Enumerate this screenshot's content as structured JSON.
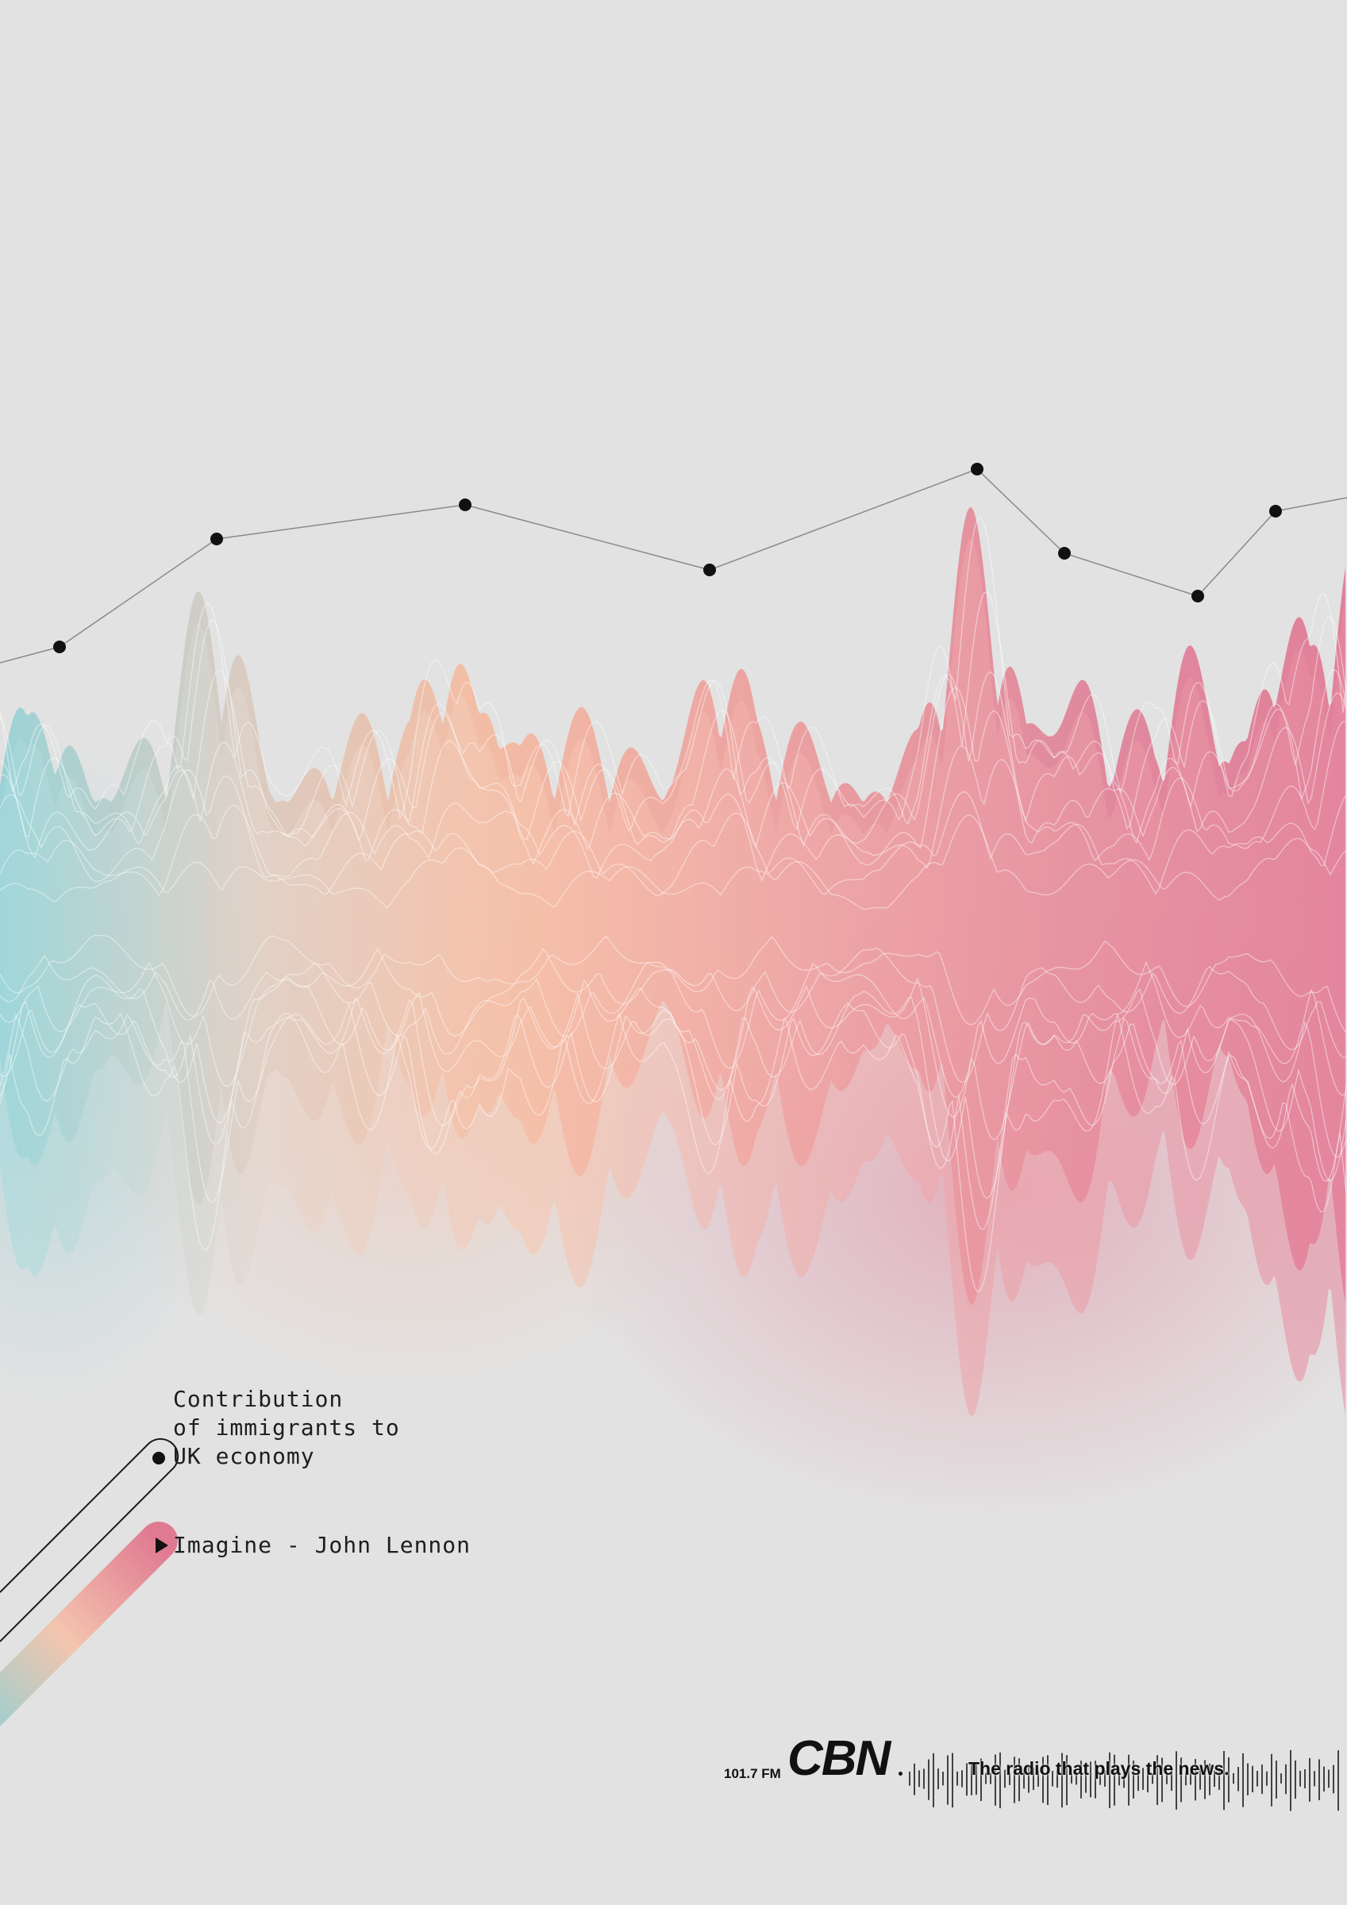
{
  "caption": {
    "lines": [
      "Contribution",
      "of immigrants to",
      "UK economy"
    ]
  },
  "song": {
    "label": "Imagine - John Lennon"
  },
  "brand": {
    "frequency": "101.7 FM",
    "logo": "CBN",
    "tagline": "The radio that plays the news."
  },
  "icons": {
    "play": "play-icon",
    "dot": "bullet-dot-icon"
  },
  "colors": {
    "background": "#e2e2e2",
    "teal": "#8fd0d4",
    "beige": "#d8c8bc",
    "peach": "#f5b79a",
    "salmon": "#ee9a96",
    "pink": "#e07a92",
    "ink": "#111111"
  }
}
